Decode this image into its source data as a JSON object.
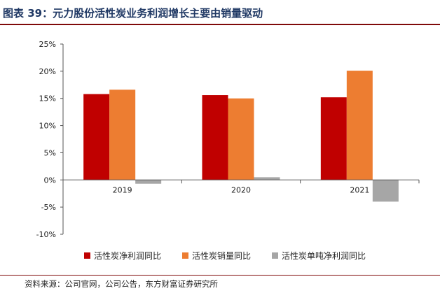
{
  "figure": {
    "title": "图表 39：元力股份活性炭业务利润增长主要由销量驱动",
    "source": "资料来源：公司官网，公司公告，东方财富证券研究所"
  },
  "chart_data": {
    "type": "bar",
    "categories": [
      "2019",
      "2020",
      "2021"
    ],
    "series": [
      {
        "name": "活性炭净利润同比",
        "color": "#c00000",
        "values": [
          15.8,
          15.6,
          15.2
        ]
      },
      {
        "name": "活性炭销量同比",
        "color": "#ed7d31",
        "values": [
          16.6,
          15.0,
          20.1
        ]
      },
      {
        "name": "活性炭单吨净利润同比",
        "color": "#a6a6a6",
        "values": [
          -0.7,
          0.5,
          -4.0
        ]
      }
    ],
    "ylim": [
      -10,
      25
    ],
    "yticks": [
      25,
      20,
      15,
      10,
      5,
      0,
      -5,
      -10
    ],
    "ytick_labels": [
      "25%",
      "20%",
      "15%",
      "10%",
      "5%",
      "0%",
      "-5%",
      "-10%"
    ],
    "grid": false,
    "legend_position": "bottom"
  }
}
